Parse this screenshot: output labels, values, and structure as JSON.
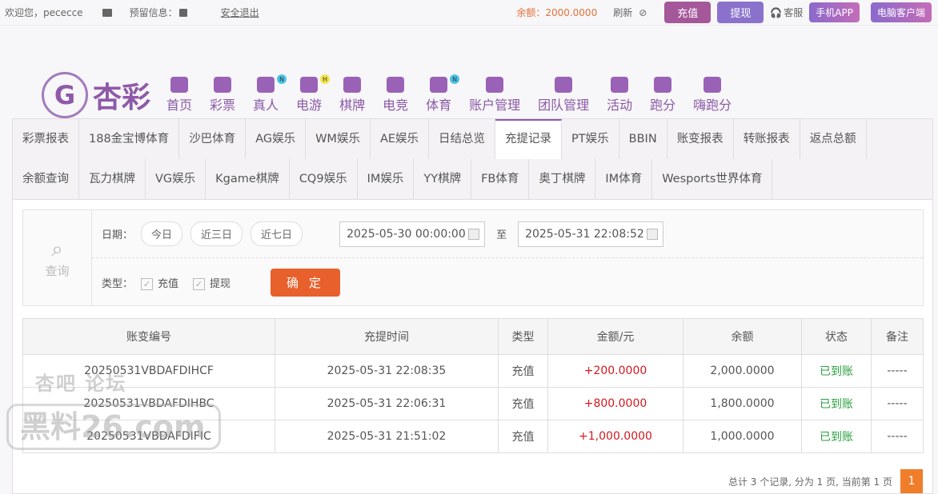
{
  "topbar": {
    "welcome": "欢迎您，pececce",
    "reserved": "预留信息：",
    "logout": "安全退出",
    "balance": "余额：2000.0000",
    "refresh": "刷新",
    "deposit": "充值",
    "withdraw": "提现",
    "service": "客服",
    "mobile_app": "手机APP",
    "pc_client": "电脑客户端"
  },
  "logo": {
    "text": "杏彩"
  },
  "nav": [
    {
      "label": "首页",
      "icon": "home-icon"
    },
    {
      "label": "彩票",
      "icon": "ticket-icon"
    },
    {
      "label": "真人",
      "icon": "live-dealer-icon",
      "badge": "N"
    },
    {
      "label": "电游",
      "icon": "gamepad-icon",
      "badge": "H"
    },
    {
      "label": "棋牌",
      "icon": "cards-icon"
    },
    {
      "label": "电竞",
      "icon": "gamepad-icon"
    },
    {
      "label": "体育",
      "icon": "trophy-icon",
      "badge": "N"
    },
    {
      "label": "账户管理",
      "icon": "yen-icon"
    },
    {
      "label": "团队管理",
      "icon": "team-icon"
    },
    {
      "label": "活动",
      "icon": "gift-icon"
    },
    {
      "label": "跑分",
      "icon": "rhino-icon"
    },
    {
      "label": "嗨跑分",
      "icon": "hi-icon"
    }
  ],
  "tabs": [
    "彩票报表",
    "188金宝博体育",
    "沙巴体育",
    "AG娱乐",
    "WM娱乐",
    "AE娱乐",
    "日结总览",
    "充提记录",
    "PT娱乐",
    "BBIN",
    "账变报表",
    "转账报表",
    "返点总额",
    "余额查询",
    "瓦力棋牌",
    "VG娱乐",
    "Kgame棋牌",
    "CQ9娱乐",
    "IM娱乐",
    "YY棋牌",
    "FB体育",
    "奥丁棋牌",
    "IM体育",
    "Wesports世界体育"
  ],
  "active_tab": "充提记录",
  "filter": {
    "query": "查询",
    "date_label": "日期：",
    "today": "今日",
    "three_days": "近三日",
    "seven_days": "近七日",
    "start": "2025-05-30 00:00:00",
    "to": "至",
    "end": "2025-05-31 22:08:52",
    "type_label": "类型：",
    "deposit": "充值",
    "withdraw": "提现",
    "confirm": "确 定"
  },
  "table": {
    "headers": [
      "账变编号",
      "充提时间",
      "类型",
      "金额/元",
      "余额",
      "状态",
      "备注"
    ],
    "rows": [
      [
        "20250531VBDAFDIHCF",
        "2025-05-31 22:08:35",
        "充值",
        "+200.0000",
        "2,000.0000",
        "已到账",
        "-----"
      ],
      [
        "20250531VBDAFDIHBC",
        "2025-05-31 22:06:31",
        "充值",
        "+800.0000",
        "1,800.0000",
        "已到账",
        "-----"
      ],
      [
        "20250531VBDAFDIFIC",
        "2025-05-31 21:51:02",
        "充值",
        "+1,000.0000",
        "1,000.0000",
        "已到账",
        "-----"
      ]
    ]
  },
  "pager": {
    "summary": "总计 3 个记录, 分为 1 页, 当前第 1 页",
    "page": "1"
  },
  "watermark": {
    "top": "杏吧  论坛",
    "main": "黑料26.com"
  },
  "colors": {
    "accent": "#8e5aa8",
    "deposit_btn": "#a4589a",
    "withdraw_btn": "#8a72cc",
    "amount": "#d0191f",
    "status": "#2aa040",
    "confirm": "#e8602c"
  }
}
